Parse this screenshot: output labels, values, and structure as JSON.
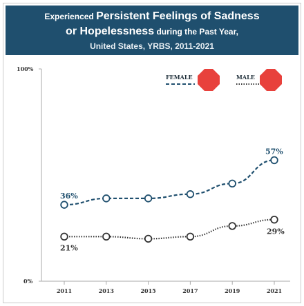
{
  "header": {
    "line1_small": "Experienced ",
    "line1_big": "Persistent Feelings of Sadness",
    "line2_big": "or Hopelessness",
    "line2_small": " during the Past Year,",
    "line3": "United States, YRBS, 2011-2021"
  },
  "chart_data": {
    "type": "line",
    "title": "Experienced Persistent Feelings of Sadness or Hopelessness during the Past Year, United States, YRBS, 2011-2021",
    "x": [
      "2011",
      "2013",
      "2015",
      "2017",
      "2019",
      "2021"
    ],
    "series": [
      {
        "name": "FEMALE",
        "values": [
          36,
          39,
          39,
          41,
          46,
          57
        ],
        "color": "#1f4f6e",
        "line_style": "dashed",
        "first_label": "36%",
        "last_label": "57%"
      },
      {
        "name": "MALE",
        "values": [
          21,
          21,
          20,
          21,
          26,
          29
        ],
        "color": "#333333",
        "line_style": "dotted",
        "first_label": "21%",
        "last_label": "29%"
      }
    ],
    "ylim": [
      0,
      100
    ],
    "y_ticks": [
      "0%",
      "100%"
    ],
    "grid": false,
    "legend_position": "top-right",
    "legend_marker_color": "#e8413c"
  }
}
